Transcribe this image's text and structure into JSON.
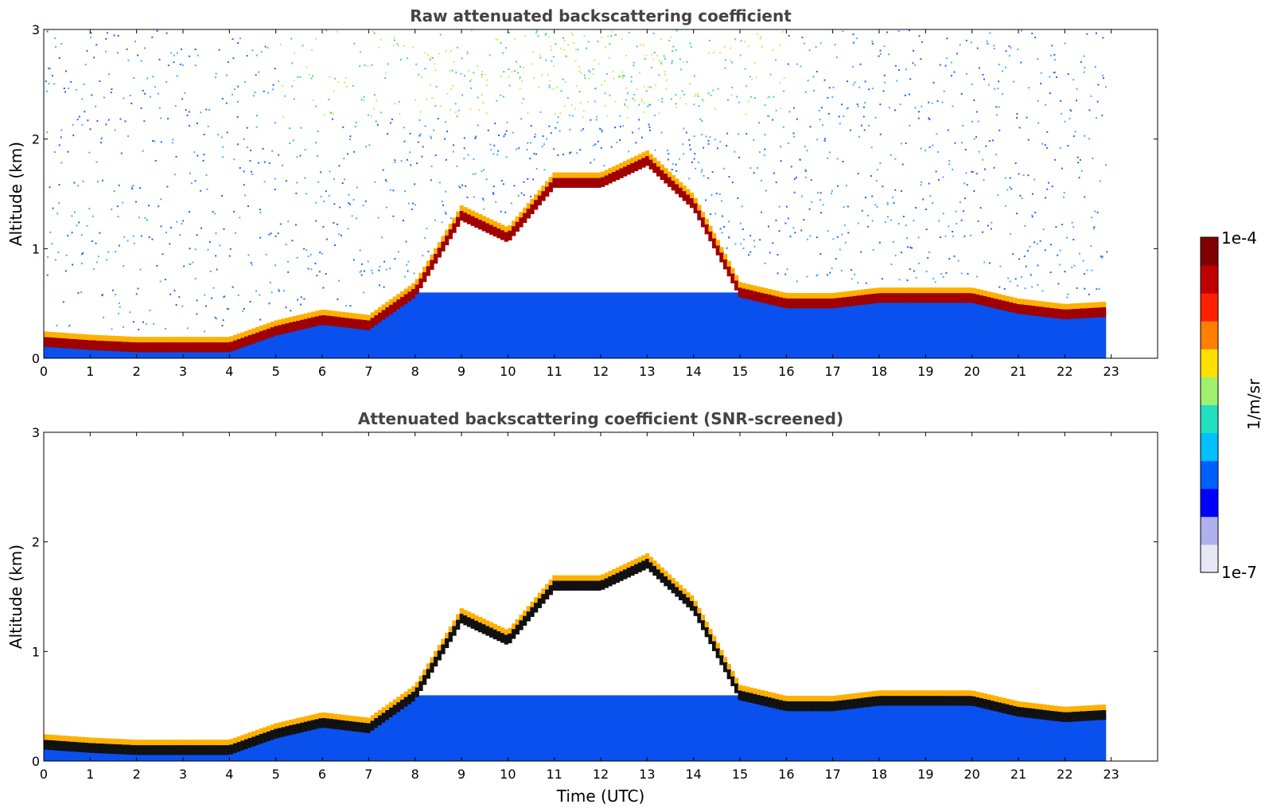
{
  "figure": {
    "colorbar": {
      "label": "1/m/sr",
      "max_label": "1e-4",
      "min_label": "1e-7",
      "colormap": [
        "#e6e6f5",
        "#b0b0ef",
        "#0000ff",
        "#0060ff",
        "#00c0ff",
        "#20e0c0",
        "#a0f070",
        "#ffe000",
        "#ff8000",
        "#ff2000",
        "#c00000",
        "#800000"
      ]
    }
  },
  "chart_data": [
    {
      "type": "heatmap",
      "title": "Raw attenuated backscattering coefficient",
      "xlabel": "",
      "ylabel": "Altitude (km)",
      "xlim": [
        0,
        24
      ],
      "ylim": [
        0,
        3
      ],
      "x_ticks": [
        "0",
        "1",
        "2",
        "3",
        "4",
        "5",
        "6",
        "7",
        "8",
        "9",
        "10",
        "11",
        "12",
        "13",
        "14",
        "15",
        "16",
        "17",
        "18",
        "19",
        "20",
        "21",
        "22",
        "23"
      ],
      "y_ticks": [
        "0",
        "1",
        "2",
        "3"
      ],
      "data_end_time": 22.8,
      "z_scale": "log",
      "z_range": [
        1e-07,
        0.0001
      ],
      "boundary_layer_top_km": {
        "time": [
          0,
          1,
          2,
          3,
          4,
          5,
          6,
          7,
          8,
          9,
          10,
          11,
          12,
          13,
          14,
          15,
          16,
          17,
          18,
          19,
          20,
          21,
          22,
          22.8
        ],
        "height": [
          0.15,
          0.12,
          0.1,
          0.1,
          0.1,
          0.25,
          0.35,
          0.3,
          0.6,
          1.3,
          1.1,
          1.6,
          1.6,
          1.8,
          1.4,
          0.6,
          0.5,
          0.5,
          0.55,
          0.55,
          0.55,
          0.45,
          0.4,
          0.42
        ]
      }
    },
    {
      "type": "heatmap",
      "title": "Attenuated backscattering coefficient (SNR-screened)",
      "xlabel": "Time (UTC)",
      "ylabel": "Altitude (km)",
      "xlim": [
        0,
        24
      ],
      "ylim": [
        0,
        3
      ],
      "x_ticks": [
        "0",
        "1",
        "2",
        "3",
        "4",
        "5",
        "6",
        "7",
        "8",
        "9",
        "10",
        "11",
        "12",
        "13",
        "14",
        "15",
        "16",
        "17",
        "18",
        "19",
        "20",
        "21",
        "22",
        "23"
      ],
      "y_ticks": [
        "0",
        "1",
        "2",
        "3"
      ],
      "data_end_time": 22.8,
      "z_scale": "log",
      "z_range": [
        1e-07,
        0.0001
      ]
    }
  ]
}
